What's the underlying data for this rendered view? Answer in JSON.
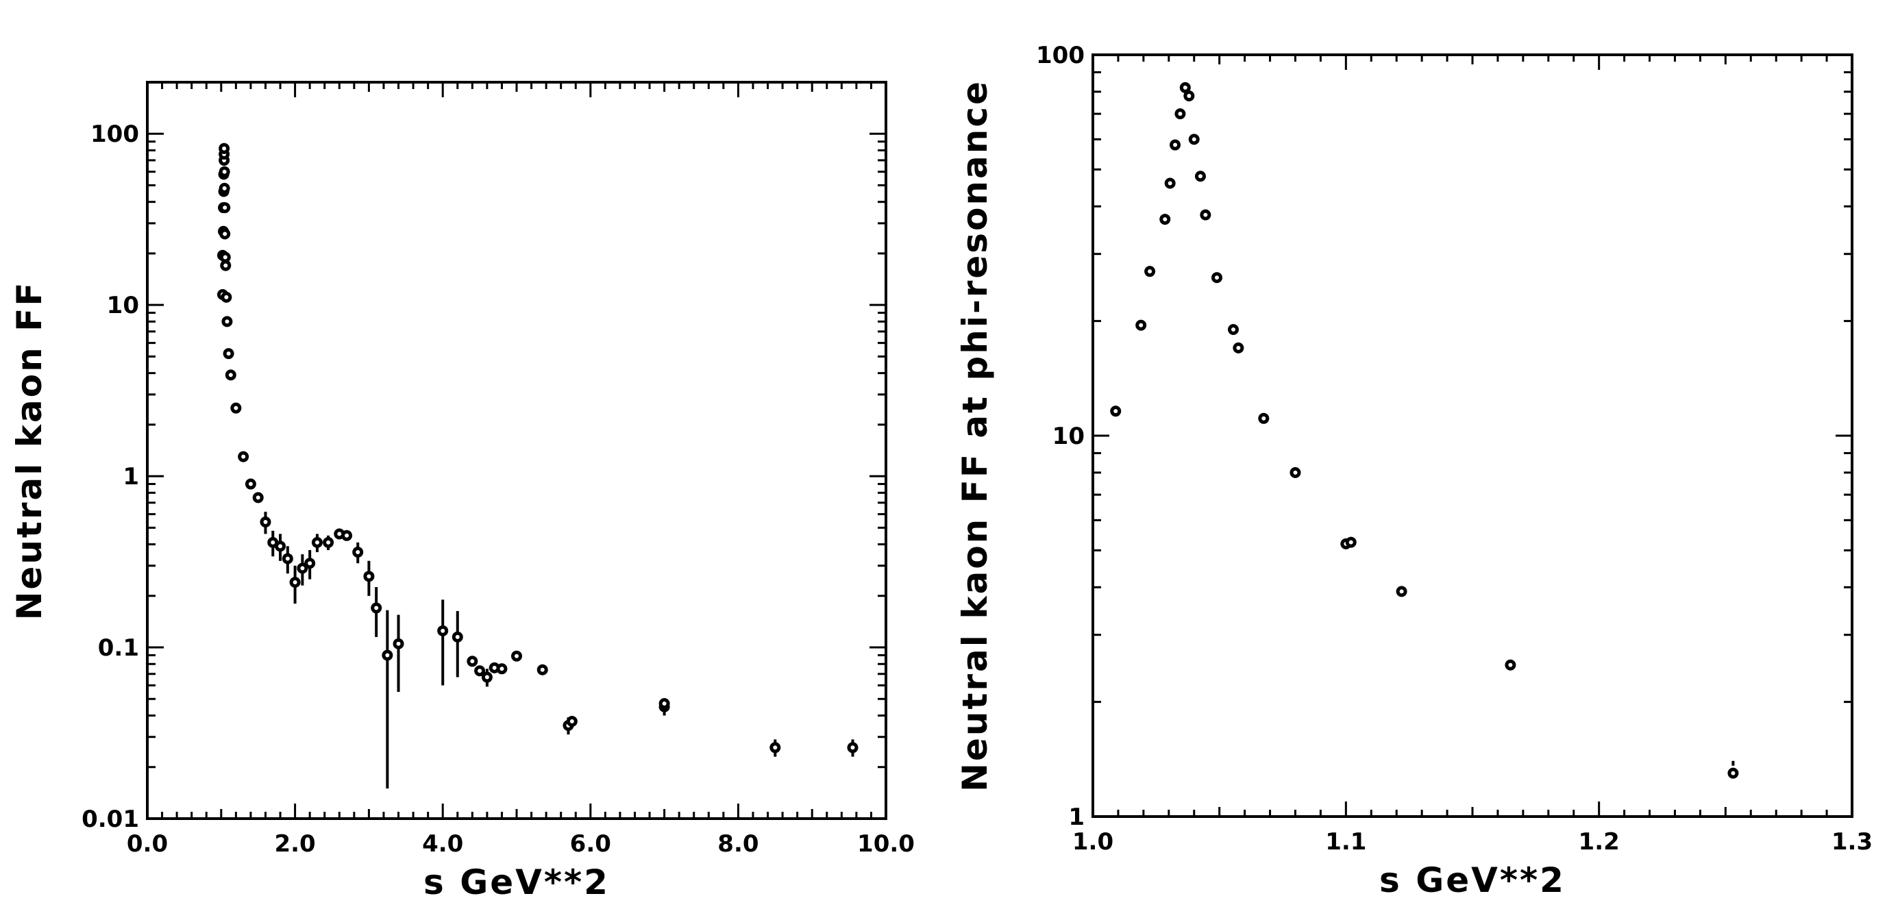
{
  "chart_data": [
    {
      "type": "scatter",
      "xlabel": "s GeV**2",
      "ylabel": "Neutral kaon FF",
      "xlim": [
        0,
        10
      ],
      "ylim": [
        0.01,
        200
      ],
      "yscale": "log",
      "grid": false,
      "xticks": [
        "0.0",
        "2.0",
        "4.0",
        "6.0",
        "8.0",
        "10.0"
      ],
      "yticks": [
        "0.01",
        "0.1",
        "1",
        "10",
        "100"
      ],
      "series": [
        {
          "points": [
            {
              "x": 1.02,
              "y": 11.5
            },
            {
              "x": 1.02,
              "y": 19.5
            },
            {
              "x": 1.03,
              "y": 26.9
            },
            {
              "x": 1.03,
              "y": 37.0
            },
            {
              "x": 1.035,
              "y": 46.0
            },
            {
              "x": 1.035,
              "y": 58.0
            },
            {
              "x": 1.04,
              "y": 70.0
            },
            {
              "x": 1.04,
              "y": 76.0
            },
            {
              "x": 1.04,
              "y": 82.0
            },
            {
              "x": 1.045,
              "y": 60.0
            },
            {
              "x": 1.045,
              "y": 48.0
            },
            {
              "x": 1.05,
              "y": 37.0
            },
            {
              "x": 1.05,
              "y": 26.0
            },
            {
              "x": 1.055,
              "y": 19.0
            },
            {
              "x": 1.06,
              "y": 17.0
            },
            {
              "x": 1.07,
              "y": 11.1
            },
            {
              "x": 1.08,
              "y": 8.0
            },
            {
              "x": 1.1,
              "y": 5.2
            },
            {
              "x": 1.13,
              "y": 3.9
            },
            {
              "x": 1.2,
              "y": 2.5
            },
            {
              "x": 1.3,
              "y": 1.3
            },
            {
              "x": 1.4,
              "y": 0.9
            },
            {
              "x": 1.5,
              "y": 0.75
            },
            {
              "x": 1.6,
              "y": 0.54,
              "err": 0.08
            },
            {
              "x": 1.7,
              "y": 0.41,
              "err": 0.07
            },
            {
              "x": 1.8,
              "y": 0.39,
              "err": 0.07
            },
            {
              "x": 1.9,
              "y": 0.33,
              "err": 0.06
            },
            {
              "x": 2.0,
              "y": 0.24,
              "err": 0.06
            },
            {
              "x": 2.1,
              "y": 0.29,
              "err": 0.06
            },
            {
              "x": 2.2,
              "y": 0.31,
              "err": 0.06
            },
            {
              "x": 2.3,
              "y": 0.41,
              "err": 0.05
            },
            {
              "x": 2.45,
              "y": 0.41,
              "err": 0.04
            },
            {
              "x": 2.6,
              "y": 0.46,
              "err": 0.03
            },
            {
              "x": 2.7,
              "y": 0.45,
              "err": 0.03
            },
            {
              "x": 2.85,
              "y": 0.36,
              "err": 0.05
            },
            {
              "x": 3.0,
              "y": 0.26,
              "err": 0.06
            },
            {
              "x": 3.1,
              "y": 0.17,
              "err": 0.055
            },
            {
              "x": 3.25,
              "y": 0.09,
              "err": 0.075
            },
            {
              "x": 3.4,
              "y": 0.105,
              "err": 0.05
            },
            {
              "x": 4.0,
              "y": 0.125,
              "err": 0.065
            },
            {
              "x": 4.2,
              "y": 0.115,
              "err": 0.048
            },
            {
              "x": 4.4,
              "y": 0.083
            },
            {
              "x": 4.5,
              "y": 0.073
            },
            {
              "x": 4.6,
              "y": 0.067,
              "err": 0.008
            },
            {
              "x": 4.7,
              "y": 0.076
            },
            {
              "x": 4.8,
              "y": 0.075
            },
            {
              "x": 5.0,
              "y": 0.089
            },
            {
              "x": 5.35,
              "y": 0.074
            },
            {
              "x": 5.7,
              "y": 0.035,
              "err": 0.004
            },
            {
              "x": 5.75,
              "y": 0.037
            },
            {
              "x": 7.0,
              "y": 0.045,
              "err": 0.005
            },
            {
              "x": 7.0,
              "y": 0.047
            },
            {
              "x": 8.5,
              "y": 0.026,
              "err": 0.003
            },
            {
              "x": 9.55,
              "y": 0.026,
              "err": 0.003
            }
          ]
        }
      ]
    },
    {
      "type": "scatter",
      "xlabel": "s GeV**2",
      "ylabel": "Neutral kaon FF at phi-resonance",
      "xlim": [
        1.0,
        1.3
      ],
      "ylim": [
        1,
        100
      ],
      "yscale": "log",
      "grid": false,
      "xticks": [
        "1.0",
        "1.1",
        "1.2",
        "1.3"
      ],
      "yticks": [
        "1",
        "10",
        "100"
      ],
      "series": [
        {
          "points": [
            {
              "x": 1.009,
              "y": 11.6
            },
            {
              "x": 1.019,
              "y": 19.5
            },
            {
              "x": 1.0225,
              "y": 27.0
            },
            {
              "x": 1.0285,
              "y": 37.0
            },
            {
              "x": 1.0305,
              "y": 46.0
            },
            {
              "x": 1.0325,
              "y": 58.0
            },
            {
              "x": 1.0345,
              "y": 70.0
            },
            {
              "x": 1.0365,
              "y": 82.0
            },
            {
              "x": 1.038,
              "y": 78.0
            },
            {
              "x": 1.04,
              "y": 60.0
            },
            {
              "x": 1.0425,
              "y": 48.0
            },
            {
              "x": 1.0445,
              "y": 38.0
            },
            {
              "x": 1.049,
              "y": 26.0
            },
            {
              "x": 1.0555,
              "y": 19.0
            },
            {
              "x": 1.0575,
              "y": 17.0
            },
            {
              "x": 1.0675,
              "y": 11.1
            },
            {
              "x": 1.08,
              "y": 8.0
            },
            {
              "x": 1.1,
              "y": 5.2
            },
            {
              "x": 1.102,
              "y": 5.25
            },
            {
              "x": 1.122,
              "y": 3.9
            },
            {
              "x": 1.165,
              "y": 2.5
            },
            {
              "x": 1.253,
              "y": 1.3,
              "err": 0.06
            }
          ]
        }
      ]
    }
  ]
}
